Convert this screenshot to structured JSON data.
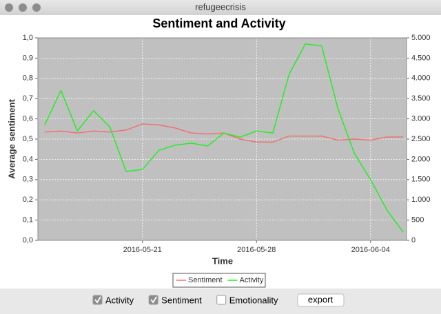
{
  "window": {
    "title": "refugeecrisis"
  },
  "controls": [
    {
      "label": "Activity",
      "checked": true
    },
    {
      "label": "Sentiment",
      "checked": true
    },
    {
      "label": "Emotionality",
      "checked": false
    }
  ],
  "button": "export",
  "chart_data": {
    "type": "line",
    "title": "Sentiment and Activity",
    "x_label": "Time",
    "y_label": "Average sentiment",
    "x": [
      "2016-05-15",
      "2016-05-16",
      "2016-05-17",
      "2016-05-18",
      "2016-05-19",
      "2016-05-20",
      "2016-05-21",
      "2016-05-22",
      "2016-05-23",
      "2016-05-24",
      "2016-05-25",
      "2016-05-26",
      "2016-05-27",
      "2016-05-28",
      "2016-05-29",
      "2016-05-30",
      "2016-05-31",
      "2016-06-01",
      "2016-06-02",
      "2016-06-03",
      "2016-06-04",
      "2016-06-05",
      "2016-06-06"
    ],
    "xlim": [
      "2016-05-14T14:00",
      "2016-06-06T05:00"
    ],
    "xticks": [
      "2016-05-21",
      "2016-05-28",
      "2016-06-04"
    ],
    "series": [
      {
        "name": "Sentiment",
        "color": "#f07070",
        "values": [
          0.535,
          0.54,
          0.53,
          0.54,
          0.535,
          0.545,
          0.575,
          0.57,
          0.555,
          0.53,
          0.525,
          0.53,
          0.5,
          0.485,
          0.485,
          0.515,
          0.515,
          0.515,
          0.495,
          0.5,
          0.495,
          0.51,
          0.51
        ]
      },
      {
        "name": "Activity",
        "color": "#22ee22",
        "axis": "y2",
        "values": [
          2850,
          3700,
          2700,
          3200,
          2800,
          1700,
          1750,
          2220,
          2350,
          2400,
          2330,
          2650,
          2550,
          2700,
          2650,
          4100,
          4850,
          4800,
          3250,
          2150,
          1500,
          750,
          200
        ]
      }
    ],
    "ylim": [
      0,
      1
    ],
    "yticks": [
      {
        "value": 0,
        "label": "0,0"
      },
      {
        "value": 0.1,
        "label": "0,1"
      },
      {
        "value": 0.2,
        "label": "0,2"
      },
      {
        "value": 0.3,
        "label": "0,3"
      },
      {
        "value": 0.4,
        "label": "0,4"
      },
      {
        "value": 0.5,
        "label": "0,5"
      },
      {
        "value": 0.6,
        "label": "0,6"
      },
      {
        "value": 0.7,
        "label": "0,7"
      },
      {
        "value": 0.8,
        "label": "0,8"
      },
      {
        "value": 0.9,
        "label": "0,9"
      },
      {
        "value": 1,
        "label": "1,0"
      }
    ],
    "y2lim": [
      0,
      5000
    ],
    "y2ticks": [
      0,
      500,
      {
        "value": 1000,
        "label": "1.000"
      },
      {
        "value": 1500,
        "label": "1.500"
      },
      {
        "value": 2000,
        "label": "2.000"
      },
      {
        "value": 2500,
        "label": "2.500"
      },
      {
        "value": 3000,
        "label": "3.000"
      },
      {
        "value": 3500,
        "label": "3.500"
      },
      {
        "value": 4000,
        "label": "4.000"
      },
      {
        "value": 4500,
        "label": "4.500"
      },
      {
        "value": 5000,
        "label": "5.000"
      }
    ],
    "grid": true,
    "legend": "bottom"
  }
}
